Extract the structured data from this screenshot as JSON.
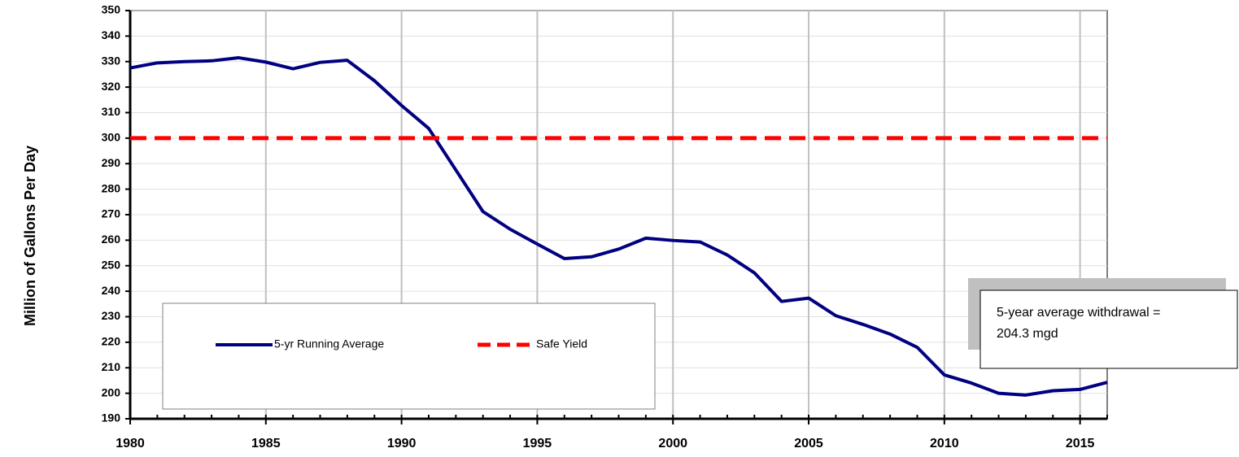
{
  "chart_data": {
    "type": "line",
    "y_label": "Million of Gallons Per Day",
    "x": [
      1980,
      1981,
      1982,
      1983,
      1984,
      1985,
      1986,
      1987,
      1988,
      1989,
      1990,
      1991,
      1992,
      1993,
      1994,
      1995,
      1996,
      1997,
      1998,
      1999,
      2000,
      2001,
      2002,
      2003,
      2004,
      2005,
      2006,
      2007,
      2008,
      2009,
      2010,
      2011,
      2012,
      2013,
      2014,
      2015,
      2016
    ],
    "series": [
      {
        "name": "5-yr Running Average",
        "color": "#000080",
        "style": "solid",
        "values": [
          327.5,
          329.5,
          330,
          330.3,
          331.5,
          329.8,
          327.2,
          329.7,
          330.5,
          322.5,
          312.8,
          303.8,
          287.5,
          271.2,
          264.3,
          258.5,
          252.8,
          253.5,
          256.5,
          260.8,
          259.9,
          259.3,
          254.2,
          247.2,
          236,
          237.3,
          230.4,
          227,
          223.2,
          218,
          207.2,
          204,
          200,
          199.3,
          201,
          201.5,
          204.3
        ]
      },
      {
        "name": "Safe Yield",
        "color": "#ff0000",
        "style": "dashed",
        "values": [
          300,
          300,
          300,
          300,
          300,
          300,
          300,
          300,
          300,
          300,
          300,
          300,
          300,
          300,
          300,
          300,
          300,
          300,
          300,
          300,
          300,
          300,
          300,
          300,
          300,
          300,
          300,
          300,
          300,
          300,
          300,
          300,
          300,
          300,
          300,
          300,
          300
        ]
      }
    ],
    "xlim": [
      1980,
      2016
    ],
    "xticks": [
      1980,
      1985,
      1990,
      1995,
      2000,
      2005,
      2010,
      2015
    ],
    "ylim": [
      190,
      350
    ],
    "yticks": [
      190,
      200,
      210,
      220,
      230,
      240,
      250,
      260,
      270,
      280,
      290,
      300,
      310,
      320,
      330,
      340,
      350
    ],
    "grid": true,
    "annotation": [
      "5-year average withdrawal =",
      "204.3 mgd"
    ]
  }
}
